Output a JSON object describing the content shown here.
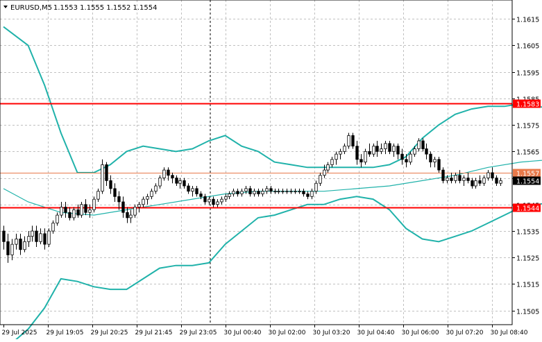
{
  "header": {
    "symbol": "EURUSD,M5",
    "ohlc": "1.1553 1.1555 1.1552 1.1554",
    "menu_icon": "triangle-down-icon"
  },
  "chart_data": {
    "type": "candlestick",
    "symbol": "EURUSD",
    "timeframe": "M5",
    "ylim": [
      1.14997,
      1.16221
    ],
    "y_ticks": [
      "1.1615",
      "1.1605",
      "1.1595",
      "1.1585",
      "1.1575",
      "1.1565",
      "1.1555",
      "1.1545",
      "1.1535",
      "1.1525",
      "1.1515",
      "1.1505"
    ],
    "x_ticks": [
      "29 Jul 2025",
      "29 Jul 19:05",
      "29 Jul 20:25",
      "29 Jul 21:45",
      "29 Jul 23:05",
      "30 Jul 00:40",
      "30 Jul 02:00",
      "30 Jul 03:20",
      "30 Jul 04:40",
      "30 Jul 06:00",
      "30 Jul 07:20",
      "30 Jul 08:40"
    ],
    "horizontal_lines": [
      {
        "price": 1.1583,
        "label": "1.1583",
        "color": "#ff0000"
      },
      {
        "price": 1.1544,
        "label": "1.1544",
        "color": "#ff0000"
      }
    ],
    "price_line": {
      "price": 1.1557,
      "label": "1.1557",
      "color": "#e8794a"
    },
    "bid_label": {
      "price": 1.1554,
      "label": "1.1554",
      "color": "#000000"
    },
    "vertical_separator": {
      "at": "29 Jul 23:05",
      "style": "dashed"
    },
    "indicators": [
      {
        "name": "bollinger_upper",
        "color": "#20b2aa",
        "points": [
          [
            0,
            1.1612
          ],
          [
            6,
            1.1605
          ],
          [
            10,
            1.159
          ],
          [
            14,
            1.1572
          ],
          [
            18,
            1.1557
          ],
          [
            22,
            1.1557
          ],
          [
            26,
            1.156
          ],
          [
            30,
            1.1565
          ],
          [
            34,
            1.1567
          ],
          [
            38,
            1.1566
          ],
          [
            42,
            1.1565
          ],
          [
            46,
            1.1566
          ],
          [
            50,
            1.1569
          ],
          [
            54,
            1.1571
          ],
          [
            58,
            1.1567
          ],
          [
            62,
            1.1565
          ],
          [
            66,
            1.1561
          ],
          [
            70,
            1.156
          ],
          [
            74,
            1.1559
          ],
          [
            78,
            1.1559
          ],
          [
            82,
            1.1559
          ],
          [
            86,
            1.1559
          ],
          [
            90,
            1.1559
          ],
          [
            94,
            1.156
          ],
          [
            98,
            1.1563
          ],
          [
            102,
            1.157
          ],
          [
            106,
            1.1575
          ],
          [
            110,
            1.1579
          ],
          [
            114,
            1.1581
          ],
          [
            118,
            1.1582
          ],
          [
            122,
            1.1582
          ],
          [
            126,
            1.1583
          ],
          [
            130,
            1.1582
          ],
          [
            134,
            1.1581
          ],
          [
            138,
            1.158
          ],
          [
            142,
            1.1579
          ],
          [
            146,
            1.1579
          ],
          [
            150,
            1.1579
          ]
        ]
      },
      {
        "name": "bollinger_middle",
        "color": "#20b2aa",
        "points": [
          [
            0,
            1.1551
          ],
          [
            6,
            1.1546
          ],
          [
            14,
            1.1542
          ],
          [
            22,
            1.1541
          ],
          [
            30,
            1.1543
          ],
          [
            38,
            1.1545
          ],
          [
            46,
            1.1547
          ],
          [
            54,
            1.1549
          ],
          [
            62,
            1.155
          ],
          [
            70,
            1.155
          ],
          [
            78,
            1.155
          ],
          [
            86,
            1.1551
          ],
          [
            94,
            1.1552
          ],
          [
            102,
            1.1554
          ],
          [
            110,
            1.1556
          ],
          [
            118,
            1.1559
          ],
          [
            126,
            1.1561
          ],
          [
            134,
            1.1562
          ],
          [
            142,
            1.1563
          ],
          [
            150,
            1.1562
          ]
        ]
      },
      {
        "name": "bollinger_lower",
        "color": "#20b2aa",
        "points": [
          [
            0,
            1.149
          ],
          [
            6,
            1.1498
          ],
          [
            10,
            1.1506
          ],
          [
            14,
            1.1517
          ],
          [
            18,
            1.1516
          ],
          [
            22,
            1.1514
          ],
          [
            26,
            1.1513
          ],
          [
            30,
            1.1513
          ],
          [
            34,
            1.1517
          ],
          [
            38,
            1.1521
          ],
          [
            42,
            1.1522
          ],
          [
            46,
            1.1522
          ],
          [
            50,
            1.1523
          ],
          [
            54,
            1.153
          ],
          [
            58,
            1.1535
          ],
          [
            62,
            1.154
          ],
          [
            66,
            1.1541
          ],
          [
            70,
            1.1543
          ],
          [
            74,
            1.1545
          ],
          [
            78,
            1.1545
          ],
          [
            82,
            1.1547
          ],
          [
            86,
            1.1548
          ],
          [
            90,
            1.1547
          ],
          [
            94,
            1.1543
          ],
          [
            98,
            1.1536
          ],
          [
            102,
            1.1532
          ],
          [
            106,
            1.1531
          ],
          [
            110,
            1.1533
          ],
          [
            114,
            1.1535
          ],
          [
            118,
            1.1538
          ],
          [
            122,
            1.1541
          ],
          [
            126,
            1.1544
          ],
          [
            130,
            1.1545
          ],
          [
            134,
            1.1546
          ],
          [
            138,
            1.1547
          ],
          [
            142,
            1.1546
          ],
          [
            146,
            1.1545
          ],
          [
            150,
            1.1544
          ]
        ]
      }
    ],
    "candles": [
      [
        1.1535,
        1.1537,
        1.1528,
        1.1531
      ],
      [
        1.1531,
        1.1534,
        1.1523,
        1.1526
      ],
      [
        1.1526,
        1.1532,
        1.1524,
        1.153
      ],
      [
        1.153,
        1.1534,
        1.1528,
        1.1532
      ],
      [
        1.1532,
        1.1534,
        1.1526,
        1.1528
      ],
      [
        1.1528,
        1.1533,
        1.1527,
        1.1531
      ],
      [
        1.1531,
        1.1535,
        1.1529,
        1.1533
      ],
      [
        1.1533,
        1.1537,
        1.1531,
        1.1535
      ],
      [
        1.1535,
        1.1537,
        1.1529,
        1.1531
      ],
      [
        1.1531,
        1.1536,
        1.153,
        1.1534
      ],
      [
        1.1534,
        1.1536,
        1.1528,
        1.153
      ],
      [
        1.153,
        1.1536,
        1.1529,
        1.1535
      ],
      [
        1.1535,
        1.1539,
        1.1534,
        1.1538
      ],
      [
        1.1538,
        1.1542,
        1.1537,
        1.1541
      ],
      [
        1.1541,
        1.1546,
        1.154,
        1.1544
      ],
      [
        1.1544,
        1.1546,
        1.154,
        1.1542
      ],
      [
        1.1542,
        1.1544,
        1.1539,
        1.154
      ],
      [
        1.154,
        1.1544,
        1.1539,
        1.1543
      ],
      [
        1.1543,
        1.1545,
        1.154,
        1.1541
      ],
      [
        1.1541,
        1.1546,
        1.154,
        1.1545
      ],
      [
        1.1545,
        1.1547,
        1.1541,
        1.1542
      ],
      [
        1.1542,
        1.1545,
        1.154,
        1.1543
      ],
      [
        1.1543,
        1.1548,
        1.1542,
        1.1547
      ],
      [
        1.1547,
        1.1551,
        1.1546,
        1.155
      ],
      [
        1.155,
        1.1562,
        1.1549,
        1.156
      ],
      [
        1.156,
        1.1561,
        1.1552,
        1.1554
      ],
      [
        1.1554,
        1.1556,
        1.1549,
        1.1551
      ],
      [
        1.1551,
        1.1553,
        1.1546,
        1.1548
      ],
      [
        1.1548,
        1.155,
        1.1543,
        1.1546
      ],
      [
        1.1546,
        1.1548,
        1.154,
        1.1542
      ],
      [
        1.1542,
        1.1544,
        1.1538,
        1.154
      ],
      [
        1.154,
        1.1543,
        1.1538,
        1.1541
      ],
      [
        1.1541,
        1.1545,
        1.154,
        1.1544
      ],
      [
        1.1544,
        1.1546,
        1.1542,
        1.1545
      ],
      [
        1.1545,
        1.1548,
        1.1544,
        1.1547
      ],
      [
        1.1547,
        1.1549,
        1.1545,
        1.1548
      ],
      [
        1.1548,
        1.1551,
        1.1547,
        1.155
      ],
      [
        1.155,
        1.1553,
        1.1549,
        1.1552
      ],
      [
        1.1552,
        1.1556,
        1.1551,
        1.1555
      ],
      [
        1.1555,
        1.1559,
        1.1554,
        1.1558
      ],
      [
        1.1558,
        1.1559,
        1.1554,
        1.1556
      ],
      [
        1.1556,
        1.1557,
        1.1553,
        1.1555
      ],
      [
        1.1555,
        1.1556,
        1.1552,
        1.1553
      ],
      [
        1.1553,
        1.1555,
        1.1551,
        1.1554
      ],
      [
        1.1554,
        1.1555,
        1.1551,
        1.1552
      ],
      [
        1.1552,
        1.1553,
        1.1549,
        1.155
      ],
      [
        1.155,
        1.1552,
        1.1548,
        1.1551
      ],
      [
        1.1551,
        1.1552,
        1.1548,
        1.1549
      ],
      [
        1.1549,
        1.155,
        1.1547,
        1.1548
      ],
      [
        1.1548,
        1.1549,
        1.1545,
        1.1546
      ],
      [
        1.1546,
        1.1548,
        1.1545,
        1.1547
      ],
      [
        1.1547,
        1.1548,
        1.1544,
        1.1545
      ],
      [
        1.1545,
        1.1547,
        1.1544,
        1.1546
      ],
      [
        1.1546,
        1.1548,
        1.1545,
        1.1547
      ],
      [
        1.1547,
        1.1549,
        1.1546,
        1.1548
      ],
      [
        1.1548,
        1.155,
        1.1547,
        1.1549
      ],
      [
        1.1549,
        1.1551,
        1.1548,
        1.155
      ],
      [
        1.155,
        1.1551,
        1.1548,
        1.1549
      ],
      [
        1.1549,
        1.1551,
        1.1548,
        1.155
      ],
      [
        1.155,
        1.1552,
        1.1549,
        1.1551
      ],
      [
        1.1551,
        1.1552,
        1.1548,
        1.1549
      ],
      [
        1.1549,
        1.1551,
        1.1548,
        1.155
      ],
      [
        1.155,
        1.1551,
        1.1548,
        1.1549
      ],
      [
        1.1549,
        1.1551,
        1.1548,
        1.155
      ],
      [
        1.155,
        1.1552,
        1.1549,
        1.1551
      ],
      [
        1.1551,
        1.1552,
        1.1549,
        1.155
      ],
      [
        1.155,
        1.1551,
        1.1549,
        1.155
      ],
      [
        1.155,
        1.1551,
        1.1549,
        1.155
      ],
      [
        1.155,
        1.1551,
        1.1549,
        1.155
      ],
      [
        1.155,
        1.1551,
        1.1549,
        1.155
      ],
      [
        1.155,
        1.1551,
        1.1549,
        1.155
      ],
      [
        1.155,
        1.1551,
        1.1549,
        1.155
      ],
      [
        1.155,
        1.1551,
        1.1549,
        1.155
      ],
      [
        1.155,
        1.1551,
        1.1548,
        1.1549
      ],
      [
        1.1549,
        1.155,
        1.1547,
        1.1548
      ],
      [
        1.1548,
        1.1551,
        1.1547,
        1.155
      ],
      [
        1.155,
        1.1554,
        1.1549,
        1.1553
      ],
      [
        1.1553,
        1.1557,
        1.1552,
        1.1556
      ],
      [
        1.1556,
        1.156,
        1.1555,
        1.1558
      ],
      [
        1.1558,
        1.1561,
        1.1557,
        1.156
      ],
      [
        1.156,
        1.1563,
        1.1559,
        1.1562
      ],
      [
        1.1562,
        1.1565,
        1.156,
        1.1564
      ],
      [
        1.1564,
        1.1566,
        1.1562,
        1.1565
      ],
      [
        1.1565,
        1.1568,
        1.1564,
        1.1567
      ],
      [
        1.1567,
        1.1572,
        1.1566,
        1.1571
      ],
      [
        1.1571,
        1.1572,
        1.1566,
        1.1567
      ],
      [
        1.1567,
        1.1569,
        1.156,
        1.1562
      ],
      [
        1.1562,
        1.1564,
        1.1559,
        1.1561
      ],
      [
        1.1561,
        1.1566,
        1.156,
        1.1565
      ],
      [
        1.1565,
        1.1568,
        1.1563,
        1.1564
      ],
      [
        1.1564,
        1.1568,
        1.1563,
        1.1567
      ],
      [
        1.1567,
        1.1569,
        1.1563,
        1.1565
      ],
      [
        1.1565,
        1.1568,
        1.1564,
        1.1566
      ],
      [
        1.1566,
        1.1569,
        1.1564,
        1.1568
      ],
      [
        1.1568,
        1.1569,
        1.1564,
        1.1565
      ],
      [
        1.1565,
        1.1568,
        1.1563,
        1.1567
      ],
      [
        1.1567,
        1.1568,
        1.1562,
        1.1564
      ],
      [
        1.1564,
        1.1566,
        1.156,
        1.1562
      ],
      [
        1.1562,
        1.1564,
        1.1559,
        1.1561
      ],
      [
        1.1561,
        1.1565,
        1.156,
        1.1564
      ],
      [
        1.1564,
        1.1567,
        1.1563,
        1.1566
      ],
      [
        1.1566,
        1.157,
        1.1565,
        1.1569
      ],
      [
        1.1569,
        1.157,
        1.1565,
        1.1566
      ],
      [
        1.1566,
        1.1568,
        1.1562,
        1.1564
      ],
      [
        1.1564,
        1.1565,
        1.1559,
        1.1561
      ],
      [
        1.1561,
        1.1563,
        1.1559,
        1.1562
      ],
      [
        1.1562,
        1.1563,
        1.1557,
        1.1558
      ],
      [
        1.1558,
        1.1559,
        1.1553,
        1.1554
      ],
      [
        1.1554,
        1.1556,
        1.1553,
        1.1555
      ],
      [
        1.1555,
        1.1557,
        1.1553,
        1.1554
      ],
      [
        1.1554,
        1.1557,
        1.1553,
        1.1556
      ],
      [
        1.1556,
        1.1558,
        1.1553,
        1.1554
      ],
      [
        1.1554,
        1.1556,
        1.1552,
        1.1555
      ],
      [
        1.1555,
        1.1557,
        1.1553,
        1.1554
      ],
      [
        1.1554,
        1.1555,
        1.1551,
        1.1552
      ],
      [
        1.1552,
        1.1555,
        1.1551,
        1.1554
      ],
      [
        1.1554,
        1.1556,
        1.1552,
        1.1553
      ],
      [
        1.1553,
        1.1556,
        1.1552,
        1.1555
      ],
      [
        1.1555,
        1.1558,
        1.1554,
        1.1557
      ],
      [
        1.1557,
        1.1559,
        1.1554,
        1.1555
      ],
      [
        1.1555,
        1.1556,
        1.1552,
        1.1553
      ],
      [
        1.1553,
        1.1555,
        1.1552,
        1.1554
      ]
    ]
  }
}
